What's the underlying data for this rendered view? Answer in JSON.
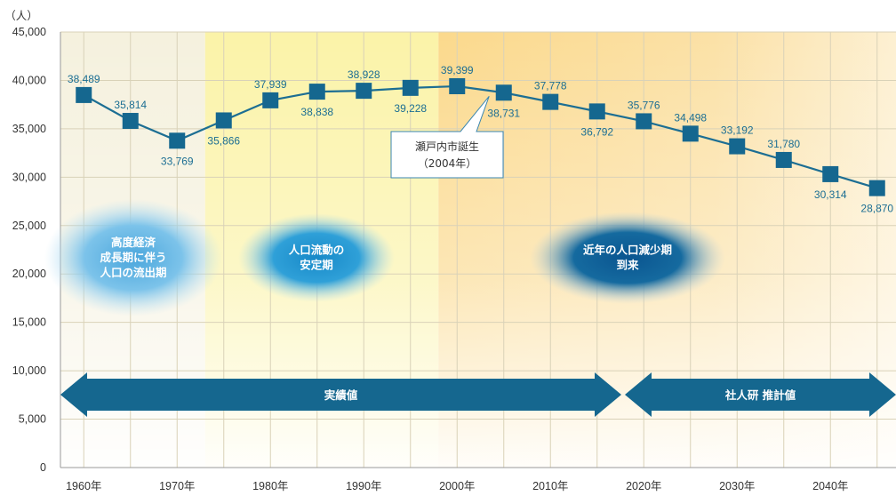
{
  "chart_data": {
    "type": "line",
    "ylabel": "（人）",
    "ylim": [
      0,
      45000
    ],
    "y_ticks": [
      "0",
      "5,000",
      "10,000",
      "15,000",
      "20,000",
      "25,000",
      "30,000",
      "35,000",
      "40,000",
      "45,000"
    ],
    "x_ticks": [
      "1960年",
      "1970年",
      "1980年",
      "1990年",
      "2000年",
      "2010年",
      "2020年",
      "2030年",
      "2040年"
    ],
    "grid": true,
    "series": [
      {
        "x": [
          1960,
          1965,
          1970,
          1975,
          1980,
          1985,
          1990,
          1995,
          2000,
          2005,
          2010,
          2015,
          2020,
          2025,
          2030,
          2035,
          2040,
          2045
        ],
        "values": [
          38489,
          35814,
          33769,
          35866,
          37939,
          38838,
          38928,
          39228,
          39399,
          38731,
          37778,
          36792,
          35776,
          34498,
          33192,
          31780,
          30314,
          28870
        ],
        "labels": [
          "38,489",
          "35,814",
          "33,769",
          "35,866",
          "37,939",
          "38,838",
          "38,928",
          "39,228",
          "39,399",
          "38,731",
          "37,778",
          "36,792",
          "35,776",
          "34,498",
          "33,192",
          "31,780",
          "30,314",
          "28,870"
        ]
      }
    ],
    "colors": {
      "line": "#1c6e93",
      "marker": "#15678f",
      "label": "#1c6e93",
      "arrow": "#15678f",
      "bubble_light": "#5aaee0",
      "bubble_mid": "#1e90c8",
      "bubble_dark": "#0b5a92",
      "grid": "#d9d2b8"
    },
    "annotations": {
      "callout": [
        "瀬戸内市誕生",
        "（2004年）"
      ],
      "bubbles": [
        [
          "高度経済",
          "成長期に伴う",
          "人口の流出期"
        ],
        [
          "人口流動の",
          "安定期"
        ],
        [
          "近年の人口減少期",
          "到来"
        ]
      ],
      "arrows": [
        "実績値",
        "社人研 推計値"
      ]
    }
  }
}
